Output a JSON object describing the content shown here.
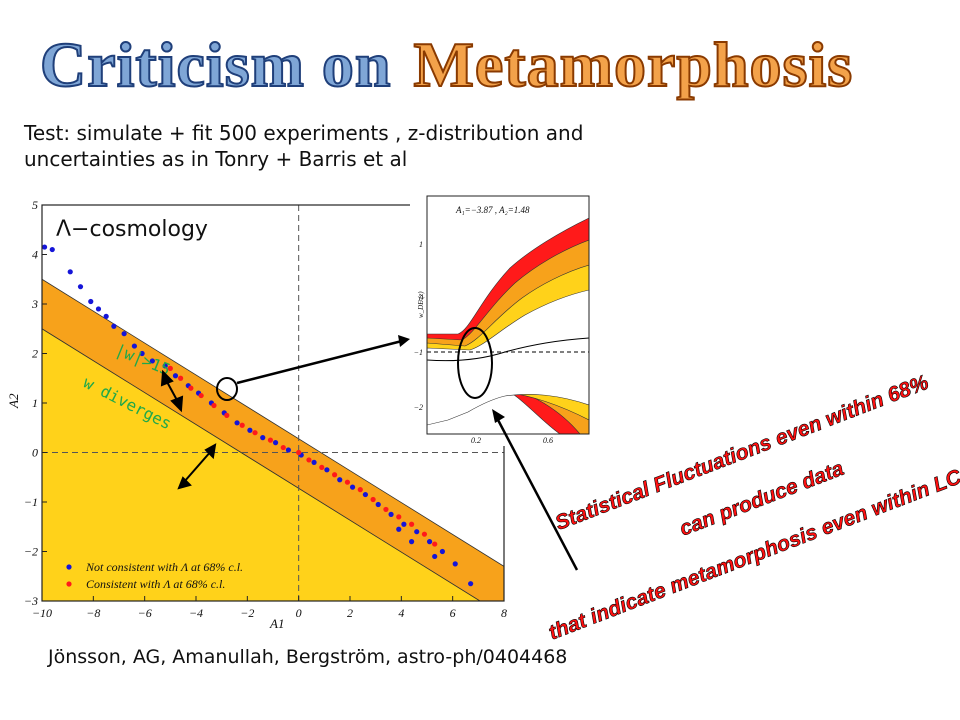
{
  "title": {
    "part1": "Criticism on",
    "part2": "Metamorphosis"
  },
  "subtitle": {
    "line1": "Test: simulate + fit 500 experiments , z-distribution and",
    "line2": "uncertainties as in Tonry + Barris et al"
  },
  "credit": "Jönsson, AG, Amanullah, Bergström, astro-ph/0404468",
  "annotations": {
    "lambda_label": "Λ−cosmology",
    "w_gt_15": "|w|>15",
    "w_diverges": "w diverges"
  },
  "statements": [
    "Statistical  Fluctuations even within 68%",
    "can produce data",
    "that indicate metamorphosis even within LCDM"
  ],
  "colors": {
    "orange": "#f7a21b",
    "yellow": "#ffd21a",
    "red": "#ff1a1a",
    "blue": "#1515d8",
    "annotation_green": "#1fa84a"
  },
  "chart_data": [
    {
      "type": "scatter",
      "xlabel": "A1",
      "ylabel": "A2",
      "xlim": [
        -10,
        8
      ],
      "ylim": [
        -3,
        5
      ],
      "x_ticks": [
        "−10",
        "−8",
        "−6",
        "−4",
        "−2",
        "0",
        "2",
        "4",
        "6",
        "8"
      ],
      "y_ticks": [
        "−3",
        "−2",
        "−1",
        "0",
        "1",
        "2",
        "3",
        "4",
        "5"
      ],
      "legend": [
        {
          "label": "Not consistent with  Λ  at 68% c.l.",
          "color": "#1515d8"
        },
        {
          "label": "Consistent with  Λ  at 68% c.l.",
          "color": "#ff1a1a"
        }
      ],
      "regions": [
        {
          "name": "orange band",
          "edges_A2_at_A1": {
            "upper": [
              [
                -10,
                3.5
              ],
              [
                8,
                -2.3
              ]
            ],
            "lower": [
              [
                -10,
                2.5
              ],
              [
                8,
                -3.3
              ]
            ]
          }
        },
        {
          "name": "yellow region",
          "below": "lower band edge"
        }
      ],
      "series": [
        {
          "name": "Not consistent with Λ at 68% c.l.",
          "color": "#1515d8",
          "points": [
            [
              -9.9,
              4.15
            ],
            [
              -9.6,
              4.1
            ],
            [
              -8.9,
              3.65
            ],
            [
              -8.5,
              3.35
            ],
            [
              -8.1,
              3.05
            ],
            [
              -7.8,
              2.9
            ],
            [
              -7.5,
              2.75
            ],
            [
              -7.2,
              2.55
            ],
            [
              -6.8,
              2.4
            ],
            [
              -6.4,
              2.15
            ],
            [
              -6.1,
              2.0
            ],
            [
              -5.7,
              1.85
            ],
            [
              -5.2,
              1.75
            ],
            [
              -4.8,
              1.55
            ],
            [
              -4.3,
              1.35
            ],
            [
              -3.9,
              1.2
            ],
            [
              -3.4,
              1.0
            ],
            [
              -2.9,
              0.8
            ],
            [
              -2.4,
              0.6
            ],
            [
              -1.9,
              0.45
            ],
            [
              -1.4,
              0.3
            ],
            [
              -0.9,
              0.2
            ],
            [
              -0.4,
              0.05
            ],
            [
              0.1,
              -0.05
            ],
            [
              0.6,
              -0.2
            ],
            [
              1.1,
              -0.35
            ],
            [
              1.6,
              -0.55
            ],
            [
              2.1,
              -0.7
            ],
            [
              2.6,
              -0.85
            ],
            [
              3.1,
              -1.05
            ],
            [
              3.6,
              -1.25
            ],
            [
              4.1,
              -1.45
            ],
            [
              4.6,
              -1.6
            ],
            [
              5.1,
              -1.8
            ],
            [
              5.6,
              -2.0
            ],
            [
              6.1,
              -2.25
            ],
            [
              6.7,
              -2.65
            ],
            [
              3.9,
              -1.55
            ],
            [
              4.4,
              -1.8
            ],
            [
              5.3,
              -2.1
            ]
          ]
        },
        {
          "name": "Consistent with Λ at 68% c.l.",
          "color": "#ff1a1a",
          "points": [
            [
              -5.0,
              1.7
            ],
            [
              -4.6,
              1.5
            ],
            [
              -4.2,
              1.3
            ],
            [
              -3.8,
              1.15
            ],
            [
              -3.3,
              0.95
            ],
            [
              -2.8,
              0.75
            ],
            [
              -2.2,
              0.55
            ],
            [
              -1.7,
              0.4
            ],
            [
              -1.1,
              0.25
            ],
            [
              -0.6,
              0.1
            ],
            [
              0.0,
              0.0
            ],
            [
              0.4,
              -0.15
            ],
            [
              0.9,
              -0.3
            ],
            [
              1.4,
              -0.45
            ],
            [
              1.9,
              -0.6
            ],
            [
              2.4,
              -0.75
            ],
            [
              2.9,
              -0.95
            ],
            [
              3.4,
              -1.15
            ],
            [
              3.9,
              -1.3
            ],
            [
              4.4,
              -1.45
            ],
            [
              4.9,
              -1.65
            ],
            [
              5.3,
              -1.85
            ]
          ]
        }
      ]
    },
    {
      "type": "line",
      "ylabel": "w_DE (z)",
      "annotation": "A₁=−3.87 , A₂=1.48",
      "x_ticks": [
        "0.2",
        "0.6"
      ],
      "y_ticks": [
        "1",
        "0",
        "−1",
        "−2"
      ],
      "reference_line_y": -1
    }
  ]
}
